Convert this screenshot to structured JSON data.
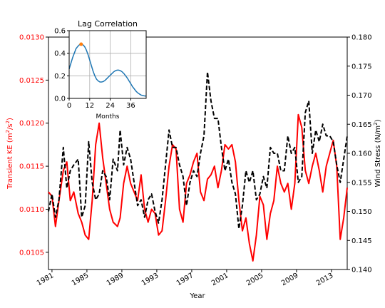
{
  "chart_data": [
    {
      "type": "line",
      "title": "",
      "xlabel": "Year",
      "ylabel_left": "Transient KE (m²/s²)",
      "ylabel_right": "Wind Stress (N/m²)",
      "xlim": [
        1980.6,
        2014.8
      ],
      "ylim_left": [
        0.0103,
        0.013
      ],
      "ylim_right": [
        0.14,
        0.18
      ],
      "x_ticks": [
        1981,
        1985,
        1989,
        1993,
        1997,
        2001,
        2005,
        2009,
        2013
      ],
      "x_tick_labels": [
        "1981",
        "1985",
        "1989",
        "1993",
        "1997",
        "2001",
        "2005",
        "2009",
        "2013"
      ],
      "y_left_ticks": [
        0.0105,
        0.011,
        0.0115,
        0.012,
        0.0125,
        0.013
      ],
      "y_left_tick_labels": [
        "0.0105",
        "0.0110",
        "0.0115",
        "0.0120",
        "0.0125",
        "0.0130"
      ],
      "y_right_ticks": [
        0.14,
        0.145,
        0.15,
        0.155,
        0.16,
        0.165,
        0.17,
        0.175,
        0.18
      ],
      "y_right_tick_labels": [
        "0.140",
        "0.145",
        "0.150",
        "0.155",
        "0.160",
        "0.165",
        "0.170",
        "0.175",
        "0.180"
      ],
      "grid": false,
      "series": [
        {
          "name": "",
          "axis": "left",
          "color": "#ff0000",
          "style": "solid",
          "x": [
            1980.6,
            1981.0,
            1981.4,
            1981.8,
            1982.3,
            1982.7,
            1983.1,
            1983.5,
            1984.0,
            1984.4,
            1984.8,
            1985.2,
            1985.6,
            1986.0,
            1986.4,
            1986.8,
            1987.2,
            1987.6,
            1988.0,
            1988.5,
            1988.8,
            1989.2,
            1989.6,
            1990.0,
            1990.4,
            1990.8,
            1991.2,
            1991.6,
            1992.0,
            1992.4,
            1992.8,
            1993.2,
            1993.6,
            1994.0,
            1994.4,
            1994.8,
            1995.2,
            1995.6,
            1996.0,
            1996.4,
            1996.8,
            1997.2,
            1997.6,
            1998.0,
            1998.4,
            1998.8,
            1999.2,
            1999.6,
            2000.0,
            2000.4,
            2000.8,
            2001.2,
            2001.6,
            2002.0,
            2002.4,
            2002.8,
            2003.2,
            2003.6,
            2004.0,
            2004.4,
            2004.8,
            2005.2,
            2005.6,
            2006.0,
            2006.4,
            2006.8,
            2007.2,
            2007.6,
            2008.0,
            2008.4,
            2008.8,
            2009.2,
            2009.6,
            2010.0,
            2010.4,
            2010.8,
            2011.2,
            2011.6,
            2012.0,
            2012.4,
            2012.8,
            2013.2,
            2013.6,
            2014.0,
            2014.4,
            2014.8
          ],
          "y": [
            0.0112,
            0.01115,
            0.0108,
            0.0111,
            0.01145,
            0.01155,
            0.0111,
            0.0112,
            0.01095,
            0.01085,
            0.0107,
            0.01065,
            0.0111,
            0.01175,
            0.012,
            0.0116,
            0.0113,
            0.011,
            0.01085,
            0.0108,
            0.0109,
            0.0113,
            0.0115,
            0.0113,
            0.0112,
            0.0111,
            0.0114,
            0.011,
            0.01085,
            0.011,
            0.01095,
            0.0107,
            0.01075,
            0.0111,
            0.0115,
            0.01175,
            0.0117,
            0.011,
            0.01085,
            0.0113,
            0.0114,
            0.01155,
            0.01165,
            0.0112,
            0.0111,
            0.01135,
            0.0114,
            0.0115,
            0.01125,
            0.01145,
            0.01175,
            0.0117,
            0.01175,
            0.01155,
            0.0111,
            0.01075,
            0.0109,
            0.0106,
            0.0104,
            0.0107,
            0.01115,
            0.01105,
            0.01065,
            0.01095,
            0.0111,
            0.0115,
            0.0113,
            0.0112,
            0.0113,
            0.011,
            0.0113,
            0.0121,
            0.01195,
            0.01145,
            0.0113,
            0.0115,
            0.01165,
            0.01145,
            0.0112,
            0.0115,
            0.01165,
            0.0118,
            0.0115,
            0.01065,
            0.0109,
            0.01125
          ]
        },
        {
          "name": "",
          "axis": "right",
          "color": "#000000",
          "style": "dashed",
          "x": [
            1980.6,
            1981.0,
            1981.4,
            1981.8,
            1982.3,
            1982.7,
            1983.1,
            1983.5,
            1984.0,
            1984.4,
            1984.8,
            1985.2,
            1985.6,
            1986.0,
            1986.4,
            1986.8,
            1987.2,
            1987.6,
            1988.0,
            1988.5,
            1988.8,
            1989.2,
            1989.6,
            1990.0,
            1990.4,
            1990.8,
            1991.2,
            1991.6,
            1992.0,
            1992.4,
            1992.8,
            1993.2,
            1993.6,
            1994.0,
            1994.4,
            1994.8,
            1995.2,
            1995.6,
            1996.0,
            1996.4,
            1996.8,
            1997.2,
            1997.6,
            1998.0,
            1998.4,
            1998.8,
            1999.2,
            1999.6,
            2000.0,
            2000.4,
            2000.8,
            2001.2,
            2001.6,
            2002.0,
            2002.4,
            2002.8,
            2003.2,
            2003.6,
            2004.0,
            2004.4,
            2004.8,
            2005.2,
            2005.6,
            2006.0,
            2006.4,
            2006.8,
            2007.2,
            2007.6,
            2008.0,
            2008.4,
            2008.8,
            2009.2,
            2009.6,
            2010.0,
            2010.4,
            2010.8,
            2011.2,
            2011.6,
            2012.0,
            2012.4,
            2012.8,
            2013.2,
            2013.6,
            2014.0,
            2014.4,
            2014.8
          ],
          "y": [
            0.15,
            0.153,
            0.149,
            0.152,
            0.161,
            0.154,
            0.157,
            0.158,
            0.159,
            0.149,
            0.151,
            0.162,
            0.155,
            0.152,
            0.153,
            0.157,
            0.156,
            0.152,
            0.159,
            0.157,
            0.164,
            0.158,
            0.161,
            0.159,
            0.155,
            0.151,
            0.152,
            0.149,
            0.152,
            0.153,
            0.15,
            0.148,
            0.152,
            0.158,
            0.164,
            0.161,
            0.161,
            0.158,
            0.156,
            0.151,
            0.155,
            0.157,
            0.156,
            0.16,
            0.163,
            0.174,
            0.169,
            0.166,
            0.166,
            0.161,
            0.157,
            0.159,
            0.155,
            0.153,
            0.147,
            0.151,
            0.157,
            0.155,
            0.157,
            0.152,
            0.153,
            0.156,
            0.154,
            0.161,
            0.16,
            0.16,
            0.157,
            0.157,
            0.163,
            0.16,
            0.161,
            0.155,
            0.156,
            0.167,
            0.169,
            0.16,
            0.164,
            0.162,
            0.165,
            0.163,
            0.163,
            0.162,
            0.158,
            0.155,
            0.159,
            0.163
          ]
        }
      ]
    },
    {
      "type": "line",
      "title": "Lag Correlation",
      "xlabel": "Months",
      "ylabel": "",
      "xlim": [
        0,
        45
      ],
      "ylim": [
        0.0,
        0.6
      ],
      "x_ticks": [
        0,
        12,
        24,
        36
      ],
      "x_tick_labels": [
        "0",
        "12",
        "24",
        "36"
      ],
      "y_ticks": [
        0.0,
        0.2,
        0.4,
        0.6
      ],
      "y_tick_labels": [
        "0.0",
        "0.2",
        "0.4",
        "0.6"
      ],
      "grid": true,
      "series": [
        {
          "name": "",
          "color": "#1f77b4",
          "x": [
            0,
            1,
            2,
            3,
            4,
            5,
            6,
            7,
            8,
            9,
            10,
            11,
            12,
            13,
            14,
            15,
            16,
            17,
            18,
            19,
            20,
            21,
            22,
            23,
            24,
            25,
            26,
            27,
            28,
            29,
            30,
            31,
            32,
            33,
            34,
            35,
            36,
            37,
            38,
            39,
            40,
            41,
            42,
            43,
            44,
            45
          ],
          "y": [
            0.26,
            0.31,
            0.36,
            0.4,
            0.44,
            0.46,
            0.475,
            0.48,
            0.475,
            0.46,
            0.43,
            0.39,
            0.34,
            0.29,
            0.24,
            0.2,
            0.17,
            0.155,
            0.145,
            0.145,
            0.15,
            0.16,
            0.175,
            0.19,
            0.205,
            0.22,
            0.235,
            0.245,
            0.25,
            0.25,
            0.245,
            0.235,
            0.22,
            0.2,
            0.18,
            0.155,
            0.13,
            0.105,
            0.085,
            0.065,
            0.05,
            0.04,
            0.03,
            0.025,
            0.022,
            0.02
          ]
        }
      ],
      "marker": {
        "x": 7,
        "y": 0.48,
        "color": "#ff7f0e"
      }
    }
  ]
}
